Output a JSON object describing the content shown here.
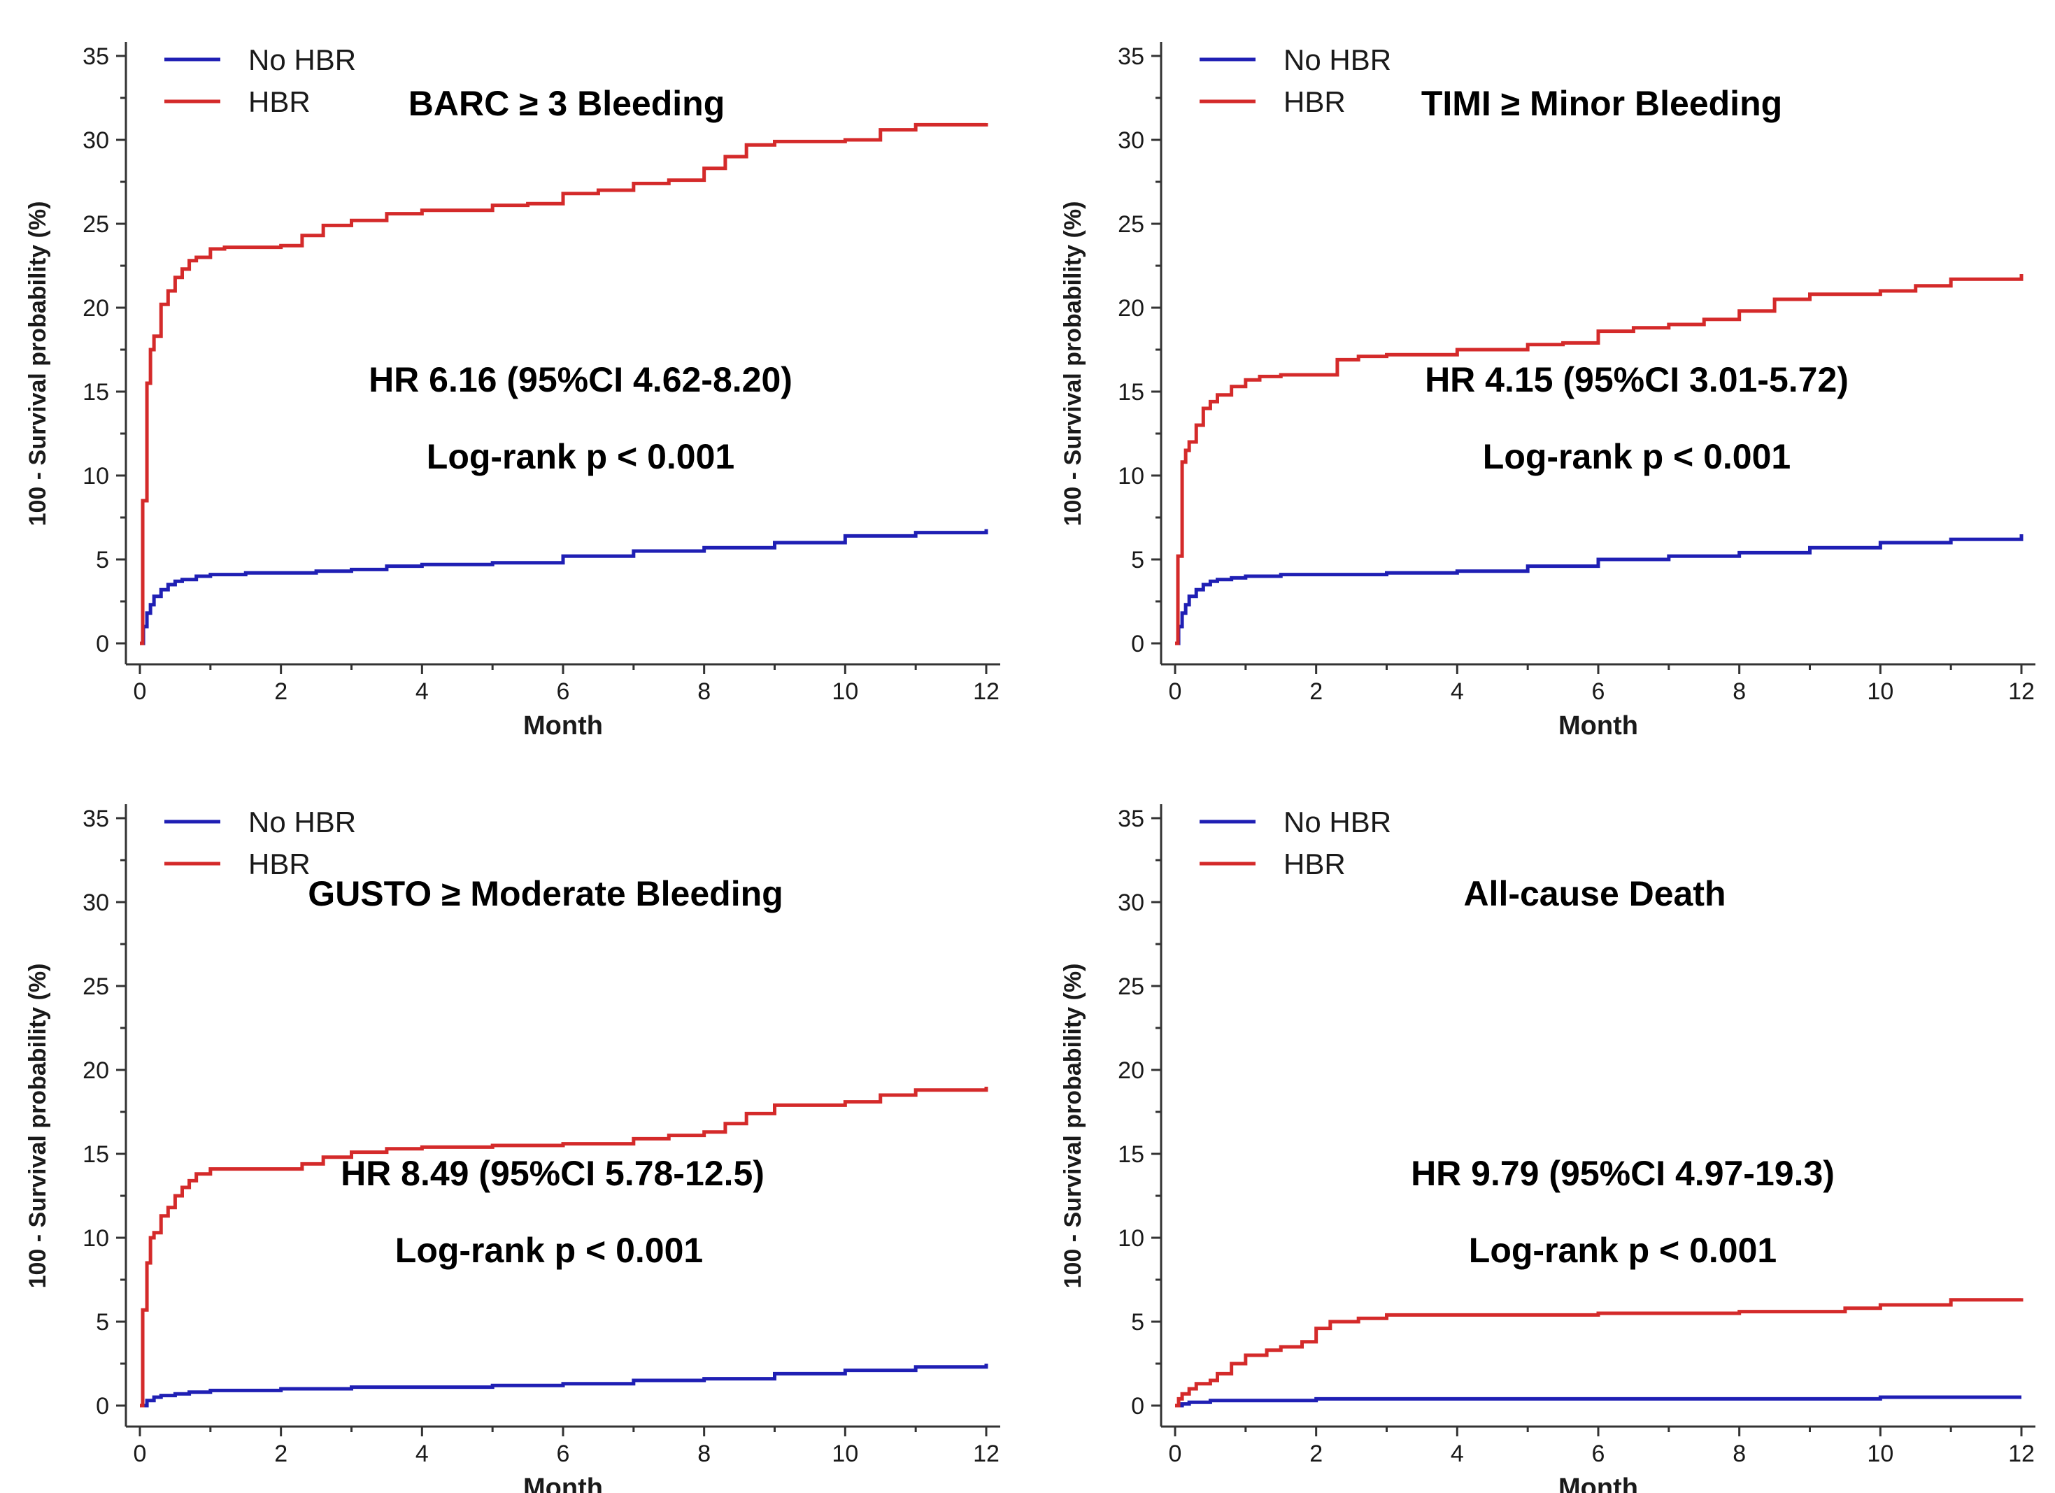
{
  "colors": {
    "no_hbr": "#1f1fb4",
    "hbr": "#d42a2a",
    "axis": "#333333"
  },
  "chart_data": [
    {
      "type": "line",
      "title": "BARC ≥ 3 Bleeding",
      "xlabel": "Month",
      "ylabel": "100 - Survival probability (%)",
      "xlim": [
        0,
        12
      ],
      "ylim": [
        0,
        35
      ],
      "xticks": [
        0,
        2,
        4,
        6,
        8,
        10,
        12
      ],
      "yticks": [
        0,
        5,
        10,
        15,
        20,
        25,
        30,
        35
      ],
      "legend_position": "top-left",
      "annotations": [
        "HR 6.16 (95%CI 4.62-8.20)",
        "Log-rank p < 0.001"
      ],
      "series": [
        {
          "name": "No HBR",
          "x": [
            0,
            0.05,
            0.1,
            0.15,
            0.2,
            0.3,
            0.4,
            0.5,
            0.6,
            0.8,
            1,
            1.5,
            2,
            2.5,
            3,
            3.5,
            4,
            5,
            6,
            7,
            8,
            9,
            10,
            11,
            12
          ],
          "y": [
            0,
            1,
            1.8,
            2.3,
            2.8,
            3.2,
            3.5,
            3.7,
            3.8,
            4.0,
            4.1,
            4.2,
            4.2,
            4.3,
            4.4,
            4.6,
            4.7,
            4.8,
            5.2,
            5.5,
            5.7,
            6.0,
            6.4,
            6.6,
            6.8
          ]
        },
        {
          "name": "HBR",
          "x": [
            0,
            0.04,
            0.1,
            0.15,
            0.2,
            0.3,
            0.4,
            0.5,
            0.6,
            0.7,
            0.8,
            1,
            1.2,
            1.5,
            2,
            2.3,
            2.6,
            3,
            3.5,
            4,
            5,
            5.5,
            6,
            6.5,
            7,
            7.5,
            8,
            8.3,
            8.6,
            9,
            10,
            10.5,
            11,
            12
          ],
          "y": [
            0,
            8.5,
            15.5,
            17.5,
            18.3,
            20.2,
            21.0,
            21.8,
            22.3,
            22.8,
            23.0,
            23.5,
            23.6,
            23.6,
            23.7,
            24.3,
            24.9,
            25.2,
            25.6,
            25.8,
            26.1,
            26.2,
            26.8,
            27.0,
            27.4,
            27.6,
            28.3,
            29.0,
            29.7,
            29.9,
            30.0,
            30.6,
            30.9,
            31.0
          ]
        }
      ]
    },
    {
      "type": "line",
      "title": "TIMI ≥ Minor Bleeding",
      "xlabel": "Month",
      "ylabel": "100 - Survival probability (%)",
      "xlim": [
        0,
        12
      ],
      "ylim": [
        0,
        35
      ],
      "xticks": [
        0,
        2,
        4,
        6,
        8,
        10,
        12
      ],
      "yticks": [
        0,
        5,
        10,
        15,
        20,
        25,
        30,
        35
      ],
      "legend_position": "top-left",
      "annotations": [
        "HR 4.15 (95%CI 3.01-5.72)",
        "Log-rank p < 0.001"
      ],
      "series": [
        {
          "name": "No HBR",
          "x": [
            0,
            0.05,
            0.1,
            0.15,
            0.2,
            0.3,
            0.4,
            0.5,
            0.6,
            0.8,
            1,
            1.5,
            2,
            3,
            4,
            5,
            6,
            7,
            8,
            9,
            10,
            11,
            12
          ],
          "y": [
            0,
            1,
            1.8,
            2.3,
            2.8,
            3.2,
            3.5,
            3.7,
            3.8,
            3.9,
            4.0,
            4.1,
            4.1,
            4.2,
            4.3,
            4.6,
            5.0,
            5.2,
            5.4,
            5.7,
            6.0,
            6.2,
            6.5
          ]
        },
        {
          "name": "HBR",
          "x": [
            0,
            0.04,
            0.1,
            0.15,
            0.2,
            0.3,
            0.4,
            0.5,
            0.6,
            0.8,
            1,
            1.2,
            1.5,
            2,
            2.3,
            2.6,
            3,
            4,
            5,
            5.5,
            6,
            6.5,
            7,
            7.5,
            8,
            8.5,
            9,
            10,
            10.5,
            11,
            12
          ],
          "y": [
            0,
            5.2,
            10.8,
            11.5,
            12.0,
            13.0,
            14.0,
            14.4,
            14.8,
            15.3,
            15.7,
            15.9,
            16.0,
            16.0,
            16.9,
            17.1,
            17.2,
            17.5,
            17.8,
            17.9,
            18.6,
            18.8,
            19.0,
            19.3,
            19.8,
            20.5,
            20.8,
            21.0,
            21.3,
            21.7,
            22.0
          ]
        }
      ]
    },
    {
      "type": "line",
      "title": "GUSTO ≥ Moderate Bleeding",
      "xlabel": "Month",
      "ylabel": "100 - Survival probability (%)",
      "xlim": [
        0,
        12
      ],
      "ylim": [
        0,
        35
      ],
      "xticks": [
        0,
        2,
        4,
        6,
        8,
        10,
        12
      ],
      "yticks": [
        0,
        5,
        10,
        15,
        20,
        25,
        30,
        35
      ],
      "legend_position": "top-left",
      "annotations": [
        "HR 8.49 (95%CI 5.78-12.5)",
        "Log-rank p < 0.001"
      ],
      "series": [
        {
          "name": "No HBR",
          "x": [
            0,
            0.1,
            0.2,
            0.3,
            0.5,
            0.7,
            1,
            1.5,
            2,
            3,
            4,
            5,
            6,
            7,
            8,
            9,
            10,
            11,
            12
          ],
          "y": [
            0,
            0.3,
            0.5,
            0.6,
            0.7,
            0.8,
            0.9,
            0.9,
            1.0,
            1.1,
            1.1,
            1.2,
            1.3,
            1.5,
            1.6,
            1.9,
            2.1,
            2.3,
            2.5
          ]
        },
        {
          "name": "HBR",
          "x": [
            0,
            0.04,
            0.1,
            0.15,
            0.2,
            0.3,
            0.4,
            0.5,
            0.6,
            0.7,
            0.8,
            1,
            1.5,
            2,
            2.3,
            2.6,
            3,
            3.5,
            4,
            5,
            6,
            6.5,
            7,
            7.5,
            8,
            8.3,
            8.6,
            9,
            10,
            10.5,
            11,
            12
          ],
          "y": [
            0,
            5.7,
            8.5,
            10.0,
            10.3,
            11.3,
            11.8,
            12.5,
            13.0,
            13.4,
            13.8,
            14.1,
            14.1,
            14.1,
            14.4,
            14.8,
            15.1,
            15.3,
            15.4,
            15.5,
            15.6,
            15.6,
            15.9,
            16.1,
            16.3,
            16.8,
            17.4,
            17.9,
            18.1,
            18.5,
            18.8,
            19.0
          ]
        }
      ]
    },
    {
      "type": "line",
      "title": "All-cause Death",
      "xlabel": "Month",
      "ylabel": "100 - Survival probability (%)",
      "xlim": [
        0,
        12
      ],
      "ylim": [
        0,
        35
      ],
      "xticks": [
        0,
        2,
        4,
        6,
        8,
        10,
        12
      ],
      "yticks": [
        0,
        5,
        10,
        15,
        20,
        25,
        30,
        35
      ],
      "legend_position": "top-left",
      "annotations": [
        "HR 9.79 (95%CI 4.97-19.3)",
        "Log-rank p < 0.001"
      ],
      "series": [
        {
          "name": "No HBR",
          "x": [
            0,
            0.1,
            0.2,
            0.5,
            1,
            2,
            4,
            6,
            8,
            10,
            12
          ],
          "y": [
            0,
            0.1,
            0.2,
            0.3,
            0.3,
            0.4,
            0.4,
            0.4,
            0.4,
            0.5,
            0.5
          ]
        },
        {
          "name": "HBR",
          "x": [
            0,
            0.05,
            0.1,
            0.2,
            0.3,
            0.5,
            0.6,
            0.8,
            1,
            1.3,
            1.5,
            1.8,
            2,
            2.2,
            2.6,
            3,
            4,
            5,
            6,
            7,
            8,
            9,
            9.5,
            10,
            11,
            12
          ],
          "y": [
            0,
            0.4,
            0.7,
            1.0,
            1.3,
            1.5,
            1.9,
            2.5,
            3.0,
            3.3,
            3.5,
            3.8,
            4.6,
            5.0,
            5.2,
            5.4,
            5.4,
            5.4,
            5.5,
            5.5,
            5.6,
            5.6,
            5.8,
            6.0,
            6.3,
            6.4
          ]
        }
      ]
    }
  ]
}
